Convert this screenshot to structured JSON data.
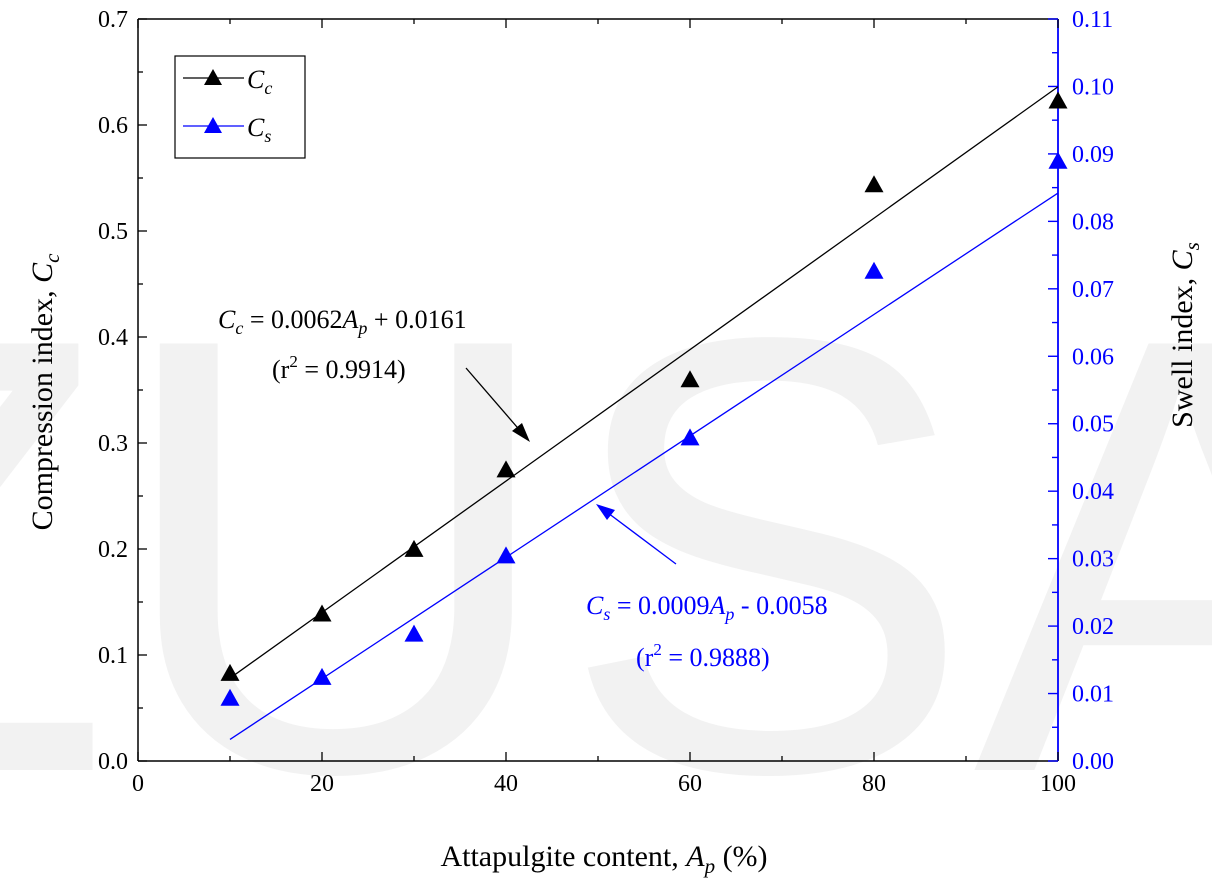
{
  "chart_data": {
    "type": "scatter",
    "watermark": "ZUSA",
    "xlabel": {
      "main": "Attapulgite content, ",
      "var": "A",
      "sub": "p",
      "tail": " (%)"
    },
    "ylabel_left": {
      "main": "Compression index, ",
      "var": "C",
      "sub": "c"
    },
    "ylabel_right": {
      "main": "Swell index, ",
      "var": "C",
      "sub": "s"
    },
    "xlim": [
      0,
      100
    ],
    "ylim_left": [
      0.0,
      0.7
    ],
    "ylim_right": [
      0.0,
      0.11
    ],
    "xticks": [
      0,
      20,
      40,
      60,
      80,
      100
    ],
    "xtick_labels": [
      "0",
      "20",
      "40",
      "60",
      "80",
      "100"
    ],
    "yticks_left": [
      0.0,
      0.1,
      0.2,
      0.3,
      0.4,
      0.5,
      0.6,
      0.7
    ],
    "ytick_labels_left": [
      "0.0",
      "0.1",
      "0.2",
      "0.3",
      "0.4",
      "0.5",
      "0.6",
      "0.7"
    ],
    "yticks_right": [
      0.0,
      0.01,
      0.02,
      0.03,
      0.04,
      0.05,
      0.06,
      0.07,
      0.08,
      0.09,
      0.1,
      0.11
    ],
    "ytick_labels_right": [
      "0.00",
      "0.01",
      "0.02",
      "0.03",
      "0.04",
      "0.05",
      "0.06",
      "0.07",
      "0.08",
      "0.09",
      "0.10",
      "0.11"
    ],
    "legend_position": "top-left",
    "grid": false,
    "series": [
      {
        "name": "Cc",
        "legend_var": "C",
        "legend_sub": "c",
        "axis": "left",
        "color": "#000000",
        "marker": "triangle",
        "x": [
          10,
          20,
          30,
          40,
          60,
          80,
          100
        ],
        "y": [
          0.082,
          0.138,
          0.199,
          0.274,
          0.359,
          0.543,
          0.622
        ],
        "fit": {
          "slope": 0.0062,
          "intercept": 0.0161,
          "x_range": [
            10,
            100
          ]
        }
      },
      {
        "name": "Cs",
        "legend_var": "C",
        "legend_sub": "s",
        "axis": "right",
        "color": "#0000ff",
        "marker": "triangle",
        "x": [
          10,
          20,
          30,
          40,
          60,
          80,
          100
        ],
        "y": [
          0.0092,
          0.0123,
          0.0187,
          0.0303,
          0.0478,
          0.0725,
          0.0888
        ],
        "fit": {
          "slope": 0.0009,
          "intercept": -0.0058,
          "x_range": [
            10,
            100
          ]
        }
      }
    ],
    "annotations": [
      {
        "series": "Cc",
        "color": "#000000",
        "eq_var": "C",
        "eq_sub": "c",
        "eq_mid": " = 0.0062",
        "eq_var2": "A",
        "eq_sub2": "p",
        "eq_tail": " + 0.0161",
        "r2_prefix": "(r",
        "r2_sup": "2",
        "r2_tail": " = 0.9914)"
      },
      {
        "series": "Cs",
        "color": "#0000ff",
        "eq_var": "C",
        "eq_sub": "s",
        "eq_mid": " = 0.0009",
        "eq_var2": "A",
        "eq_sub2": "p",
        "eq_tail": " - 0.0058",
        "r2_prefix": "(r",
        "r2_sup": "2",
        "r2_tail": " = 0.9888)"
      }
    ]
  }
}
